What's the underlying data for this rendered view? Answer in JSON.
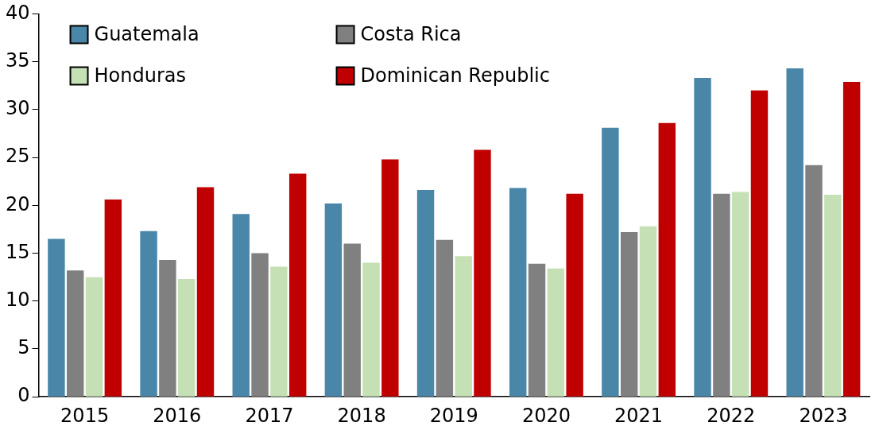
{
  "chart_data": {
    "type": "bar",
    "categories": [
      "2015",
      "2016",
      "2017",
      "2018",
      "2019",
      "2020",
      "2021",
      "2022",
      "2023"
    ],
    "series": [
      {
        "name": "Guatemala",
        "color": "#4a86a8",
        "values": [
          16.5,
          17.3,
          19.1,
          20.2,
          21.6,
          21.8,
          28.1,
          33.3,
          34.3
        ]
      },
      {
        "name": "Costa Rica",
        "color": "#808080",
        "values": [
          13.2,
          14.3,
          15.0,
          16.0,
          16.4,
          13.9,
          17.2,
          21.2,
          24.2
        ]
      },
      {
        "name": "Honduras",
        "color": "#c5e0b4",
        "values": [
          12.5,
          12.3,
          13.6,
          14.0,
          14.7,
          13.4,
          17.8,
          21.4,
          21.1
        ]
      },
      {
        "name": "Dominican Republic",
        "color": "#c00000",
        "values": [
          20.6,
          21.9,
          23.3,
          24.8,
          25.8,
          21.2,
          28.6,
          32.0,
          32.9
        ]
      }
    ],
    "ylim": [
      0,
      40
    ],
    "yticks": [
      0,
      5,
      10,
      15,
      20,
      25,
      30,
      35,
      40
    ],
    "grid": false,
    "legend": "top left"
  }
}
